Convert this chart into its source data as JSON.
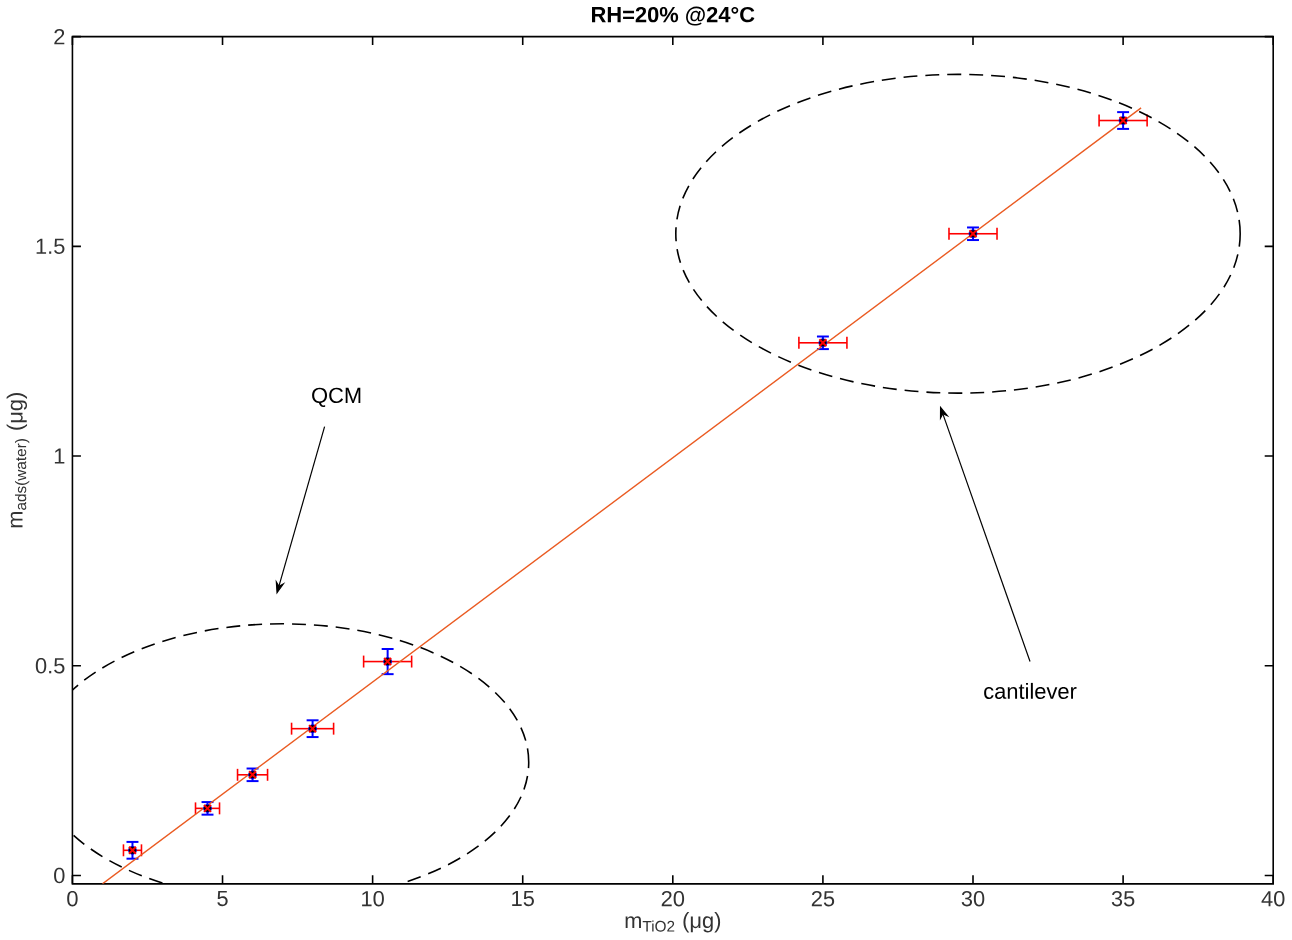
{
  "chart_data": {
    "type": "scatter",
    "title": "RH=20% @24°C",
    "xlabel": "m$_{TiO2}$ (μg)",
    "ylabel": "m$_{ads(water)}$ (μg)",
    "x": [
      2,
      4.5,
      6,
      8,
      10.5,
      25,
      30,
      35
    ],
    "series": [
      {
        "color": "#ff0000",
        "marker": "cross",
        "values": [
          0.06,
          0.16,
          0.24,
          0.35,
          0.51,
          1.27,
          1.53,
          1.8
        ],
        "errors": [
          0.02,
          0.015,
          0.015,
          0.02,
          0.03,
          0.015,
          0.015,
          0.02
        ],
        "xerrors": [
          0.3,
          0.4,
          0.5,
          0.7,
          0.8,
          0.8,
          0.8,
          0.8
        ]
      },
      {
        "type": "line",
        "color": "#ea5b22",
        "x": [
          1,
          35.6
        ],
        "values": [
          -0.02,
          1.83
        ]
      }
    ],
    "annotations": [
      "QCM",
      "cantilever"
    ],
    "xlim": [
      0,
      40
    ],
    "ylim": [
      -0.02,
      2
    ],
    "xticks": [
      0,
      5,
      10,
      15,
      20,
      25,
      30,
      35,
      40
    ],
    "yticks": [
      0,
      0.5,
      1,
      1.5,
      2
    ],
    "grid": false
  }
}
